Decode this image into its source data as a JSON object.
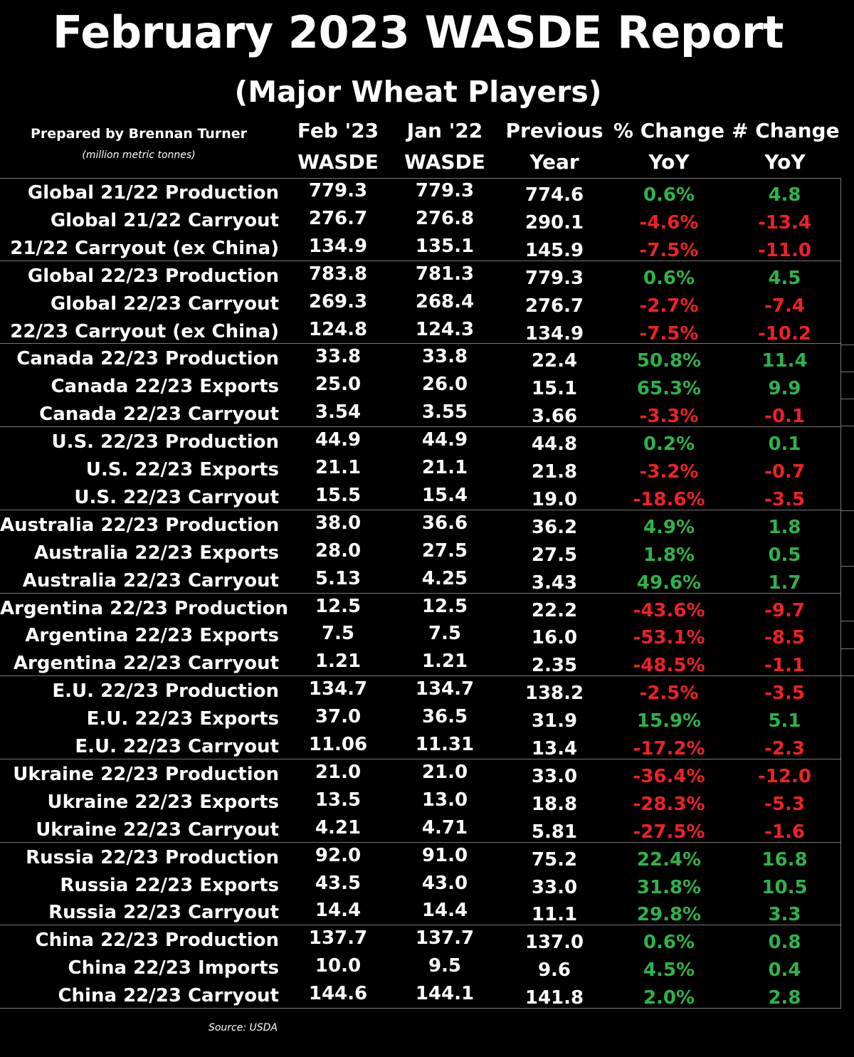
{
  "title": "February 2023 WASDE Report",
  "subtitle": "(Major Wheat Players)",
  "prepared_by": "Prepared by Brennan Turner",
  "units": "(million metric tonnes)",
  "source": "Source: USDA",
  "colors": {
    "background": "#000000",
    "text": "#ffffff",
    "positive": "#2fb34a",
    "negative": "#ee2226"
  },
  "columns": [
    {
      "line1": "Feb '23",
      "line2": "WASDE"
    },
    {
      "line1": "Jan '22",
      "line2": "WASDE"
    },
    {
      "line1": "Previous",
      "line2": "Year"
    },
    {
      "line1": "% Change",
      "line2": "YoY"
    },
    {
      "line1": "# Change",
      "line2": "YoY"
    }
  ],
  "chart_data": {
    "type": "table",
    "title": "February 2023 WASDE Report",
    "subtitle": "(Major Wheat Players)",
    "headers": [
      "",
      "Feb '23 WASDE",
      "Jan '22 WASDE",
      "Previous Year",
      "% Change YoY",
      "# Change YoY"
    ],
    "rows": [
      [
        "Global 21/22 Production",
        "779.3",
        "779.3",
        "774.6",
        "0.6%",
        "4.8"
      ],
      [
        "Global 21/22 Carryout",
        "276.7",
        "276.8",
        "290.1",
        "-4.6%",
        "-13.4"
      ],
      [
        "21/22 Carryout (ex China)",
        "134.9",
        "135.1",
        "145.9",
        "-7.5%",
        "-11.0"
      ],
      [
        "Global 22/23 Production",
        "783.8",
        "781.3",
        "779.3",
        "0.6%",
        "4.5"
      ],
      [
        "Global 22/23 Carryout",
        "269.3",
        "268.4",
        "276.7",
        "-2.7%",
        "-7.4"
      ],
      [
        "22/23 Carryout (ex China)",
        "124.8",
        "124.3",
        "134.9",
        "-7.5%",
        "-10.2"
      ],
      [
        "Canada 22/23 Production",
        "33.8",
        "33.8",
        "22.4",
        "50.8%",
        "11.4"
      ],
      [
        "Canada 22/23 Exports",
        "25.0",
        "26.0",
        "15.1",
        "65.3%",
        "9.9"
      ],
      [
        "Canada 22/23 Carryout",
        "3.54",
        "3.55",
        "3.66",
        "-3.3%",
        "-0.1"
      ],
      [
        "U.S. 22/23 Production",
        "44.9",
        "44.9",
        "44.8",
        "0.2%",
        "0.1"
      ],
      [
        "U.S. 22/23 Exports",
        "21.1",
        "21.1",
        "21.8",
        "-3.2%",
        "-0.7"
      ],
      [
        "U.S. 22/23 Carryout",
        "15.5",
        "15.4",
        "19.0",
        "-18.6%",
        "-3.5"
      ],
      [
        "Australia 22/23 Production",
        "38.0",
        "36.6",
        "36.2",
        "4.9%",
        "1.8"
      ],
      [
        "Australia 22/23 Exports",
        "28.0",
        "27.5",
        "27.5",
        "1.8%",
        "0.5"
      ],
      [
        "Australia 22/23 Carryout",
        "5.13",
        "4.25",
        "3.43",
        "49.6%",
        "1.7"
      ],
      [
        "Argentina 22/23 Production",
        "12.5",
        "12.5",
        "22.2",
        "-43.6%",
        "-9.7"
      ],
      [
        "Argentina 22/23 Exports",
        "7.5",
        "7.5",
        "16.0",
        "-53.1%",
        "-8.5"
      ],
      [
        "Argentina 22/23 Carryout",
        "1.21",
        "1.21",
        "2.35",
        "-48.5%",
        "-1.1"
      ],
      [
        "E.U. 22/23 Production",
        "134.7",
        "134.7",
        "138.2",
        "-2.5%",
        "-3.5"
      ],
      [
        "E.U. 22/23 Exports",
        "37.0",
        "36.5",
        "31.9",
        "15.9%",
        "5.1"
      ],
      [
        "E.U. 22/23 Carryout",
        "11.06",
        "11.31",
        "13.4",
        "-17.2%",
        "-2.3"
      ],
      [
        "Ukraine 22/23 Production",
        "21.0",
        "21.0",
        "33.0",
        "-36.4%",
        "-12.0"
      ],
      [
        "Ukraine 22/23 Exports",
        "13.5",
        "13.0",
        "18.8",
        "-28.3%",
        "-5.3"
      ],
      [
        "Ukraine 22/23 Carryout",
        "4.21",
        "4.71",
        "5.81",
        "-27.5%",
        "-1.6"
      ],
      [
        "Russia 22/23 Production",
        "92.0",
        "91.0",
        "75.2",
        "22.4%",
        "16.8"
      ],
      [
        "Russia 22/23 Exports",
        "43.5",
        "43.0",
        "33.0",
        "31.8%",
        "10.5"
      ],
      [
        "Russia 22/23 Carryout",
        "14.4",
        "14.4",
        "11.1",
        "29.8%",
        "3.3"
      ],
      [
        "China 22/23 Production",
        "137.7",
        "137.7",
        "137.0",
        "0.6%",
        "0.8"
      ],
      [
        "China 22/23 Imports",
        "10.0",
        "9.5",
        "9.6",
        "4.5%",
        "0.4"
      ],
      [
        "China 22/23 Carryout",
        "144.6",
        "144.1",
        "141.8",
        "2.0%",
        "2.8"
      ]
    ]
  }
}
